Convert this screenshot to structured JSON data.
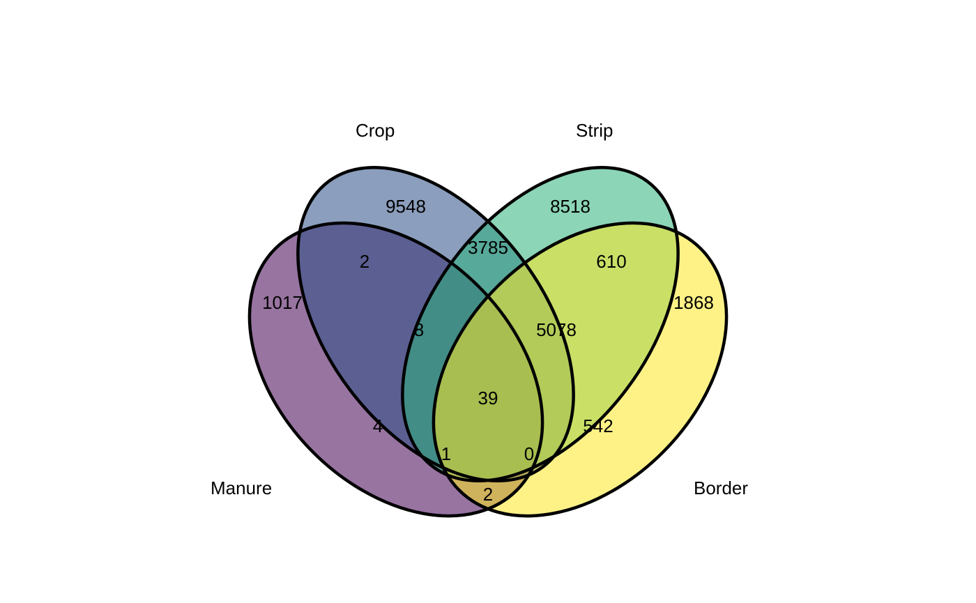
{
  "diagram": {
    "type": "venn",
    "sets": [
      {
        "id": "manure",
        "label": "Manure",
        "color": "#440154"
      },
      {
        "id": "crop",
        "label": "Crop",
        "color": "#2B4F87"
      },
      {
        "id": "strip",
        "label": "Strip",
        "color": "#2EB37C"
      },
      {
        "id": "border",
        "label": "Border",
        "color": "#FDE725"
      }
    ],
    "fill_opacity": 0.55,
    "regions": [
      {
        "sets": [
          "manure"
        ],
        "count": "1017"
      },
      {
        "sets": [
          "crop"
        ],
        "count": "9548"
      },
      {
        "sets": [
          "strip"
        ],
        "count": "8518"
      },
      {
        "sets": [
          "border"
        ],
        "count": "1868"
      },
      {
        "sets": [
          "manure",
          "crop"
        ],
        "count": "2"
      },
      {
        "sets": [
          "crop",
          "strip"
        ],
        "count": "3785"
      },
      {
        "sets": [
          "strip",
          "border"
        ],
        "count": "610"
      },
      {
        "sets": [
          "manure",
          "crop",
          "strip"
        ],
        "count": "8"
      },
      {
        "sets": [
          "crop",
          "strip",
          "border"
        ],
        "count": "5078"
      },
      {
        "sets": [
          "manure",
          "strip"
        ],
        "count": "4"
      },
      {
        "sets": [
          "manure",
          "crop",
          "strip",
          "border"
        ],
        "count": "39"
      },
      {
        "sets": [
          "crop",
          "border"
        ],
        "count": "542"
      },
      {
        "sets": [
          "manure",
          "strip",
          "border"
        ],
        "count": "1"
      },
      {
        "sets": [
          "manure",
          "crop",
          "border"
        ],
        "count": "0"
      },
      {
        "sets": [
          "manure",
          "border"
        ],
        "count": "2"
      }
    ]
  }
}
